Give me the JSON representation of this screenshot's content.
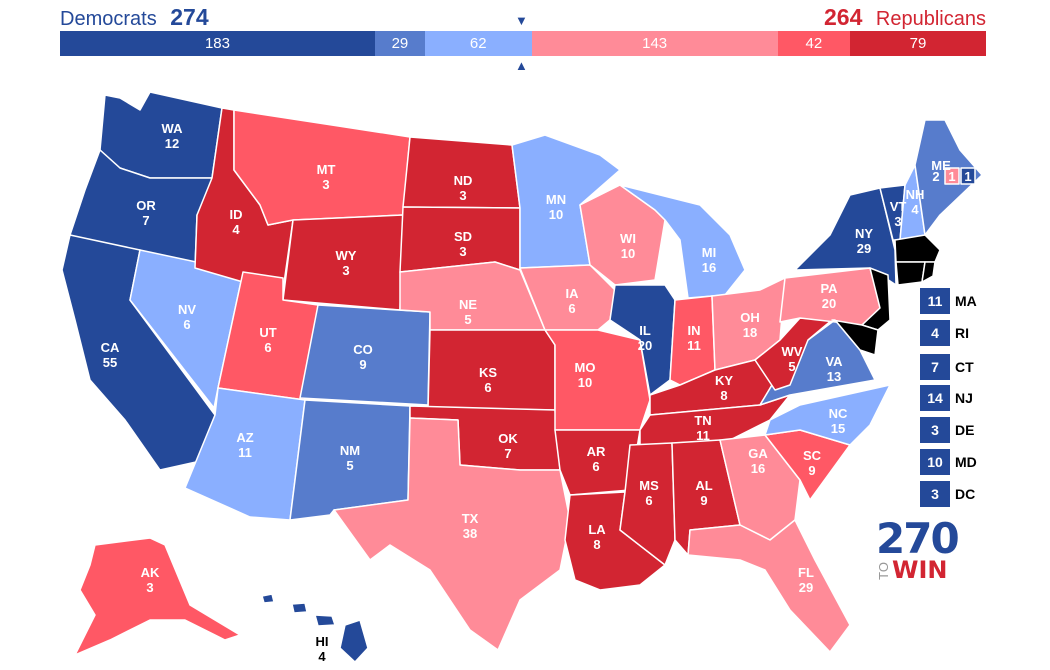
{
  "header": {
    "dem_label": "Democrats",
    "dem_total": "274",
    "rep_total": "264",
    "rep_label": "Republicans",
    "bar": [
      {
        "value": "183",
        "category": "safe-dem",
        "color": "#244999"
      },
      {
        "value": "29",
        "category": "likely-dem",
        "color": "#577ccc"
      },
      {
        "value": "62",
        "category": "leans-dem",
        "color": "#8aafff"
      },
      {
        "value": "143",
        "category": "leans-rep",
        "color": "#ff8b98"
      },
      {
        "value": "42",
        "category": "likely-rep",
        "color": "#ff5865"
      },
      {
        "value": "79",
        "category": "safe-rep",
        "color": "#d22532"
      }
    ],
    "marker_top": "▼",
    "marker_bottom": "▲"
  },
  "colors": {
    "safe-dem": "#244999",
    "likely-dem": "#577ccc",
    "leans-dem": "#8aafff",
    "leans-rep": "#ff8b98",
    "likely-rep": "#ff5865",
    "safe-rep": "#d22532"
  },
  "states": [
    {
      "abbr": "WA",
      "ev": "12",
      "cat": "safe-dem"
    },
    {
      "abbr": "OR",
      "ev": "7",
      "cat": "safe-dem"
    },
    {
      "abbr": "CA",
      "ev": "55",
      "cat": "safe-dem"
    },
    {
      "abbr": "NV",
      "ev": "6",
      "cat": "leans-dem"
    },
    {
      "abbr": "ID",
      "ev": "4",
      "cat": "safe-rep"
    },
    {
      "abbr": "MT",
      "ev": "3",
      "cat": "likely-rep"
    },
    {
      "abbr": "WY",
      "ev": "3",
      "cat": "safe-rep"
    },
    {
      "abbr": "UT",
      "ev": "6",
      "cat": "likely-rep"
    },
    {
      "abbr": "AZ",
      "ev": "11",
      "cat": "leans-dem"
    },
    {
      "abbr": "CO",
      "ev": "9",
      "cat": "likely-dem"
    },
    {
      "abbr": "NM",
      "ev": "5",
      "cat": "likely-dem"
    },
    {
      "abbr": "ND",
      "ev": "3",
      "cat": "safe-rep"
    },
    {
      "abbr": "SD",
      "ev": "3",
      "cat": "safe-rep"
    },
    {
      "abbr": "NE",
      "ev": "5",
      "cat": "leans-rep"
    },
    {
      "abbr": "KS",
      "ev": "6",
      "cat": "safe-rep"
    },
    {
      "abbr": "OK",
      "ev": "7",
      "cat": "safe-rep"
    },
    {
      "abbr": "TX",
      "ev": "38",
      "cat": "leans-rep"
    },
    {
      "abbr": "MN",
      "ev": "10",
      "cat": "leans-dem"
    },
    {
      "abbr": "IA",
      "ev": "6",
      "cat": "leans-rep"
    },
    {
      "abbr": "MO",
      "ev": "10",
      "cat": "likely-rep"
    },
    {
      "abbr": "AR",
      "ev": "6",
      "cat": "safe-rep"
    },
    {
      "abbr": "LA",
      "ev": "8",
      "cat": "safe-rep"
    },
    {
      "abbr": "WI",
      "ev": "10",
      "cat": "leans-rep"
    },
    {
      "abbr": "IL",
      "ev": "20",
      "cat": "safe-dem"
    },
    {
      "abbr": "MI",
      "ev": "16",
      "cat": "leans-dem"
    },
    {
      "abbr": "IN",
      "ev": "11",
      "cat": "likely-rep"
    },
    {
      "abbr": "OH",
      "ev": "18",
      "cat": "leans-rep"
    },
    {
      "abbr": "KY",
      "ev": "8",
      "cat": "safe-rep"
    },
    {
      "abbr": "TN",
      "ev": "11",
      "cat": "safe-rep"
    },
    {
      "abbr": "MS",
      "ev": "6",
      "cat": "safe-rep"
    },
    {
      "abbr": "AL",
      "ev": "9",
      "cat": "safe-rep"
    },
    {
      "abbr": "GA",
      "ev": "16",
      "cat": "leans-rep"
    },
    {
      "abbr": "FL",
      "ev": "29",
      "cat": "leans-rep"
    },
    {
      "abbr": "SC",
      "ev": "9",
      "cat": "likely-rep"
    },
    {
      "abbr": "NC",
      "ev": "15",
      "cat": "leans-dem"
    },
    {
      "abbr": "VA",
      "ev": "13",
      "cat": "likely-dem"
    },
    {
      "abbr": "WV",
      "ev": "5",
      "cat": "safe-rep"
    },
    {
      "abbr": "PA",
      "ev": "20",
      "cat": "leans-rep"
    },
    {
      "abbr": "NY",
      "ev": "29",
      "cat": "safe-dem"
    },
    {
      "abbr": "VT",
      "ev": "3",
      "cat": "safe-dem"
    },
    {
      "abbr": "NH",
      "ev": "4",
      "cat": "leans-dem"
    },
    {
      "abbr": "ME",
      "ev": "2",
      "cat": "likely-dem"
    },
    {
      "abbr": "ME-1",
      "ev": "1",
      "cat": "leans-rep"
    },
    {
      "abbr": "ME-2",
      "ev": "1",
      "cat": "safe-dem"
    },
    {
      "abbr": "AK",
      "ev": "3",
      "cat": "likely-rep"
    },
    {
      "abbr": "HI",
      "ev": "4",
      "cat": "safe-dem"
    }
  ],
  "northeast_boxes": [
    {
      "ev": "11",
      "abbr": "MA"
    },
    {
      "ev": "4",
      "abbr": "RI"
    },
    {
      "ev": "7",
      "abbr": "CT"
    },
    {
      "ev": "14",
      "abbr": "NJ"
    },
    {
      "ev": "3",
      "abbr": "DE"
    },
    {
      "ev": "10",
      "abbr": "MD"
    },
    {
      "ev": "3",
      "abbr": "DC"
    }
  ],
  "logo": {
    "number": "270",
    "to": "TO",
    "win": "WIN"
  }
}
